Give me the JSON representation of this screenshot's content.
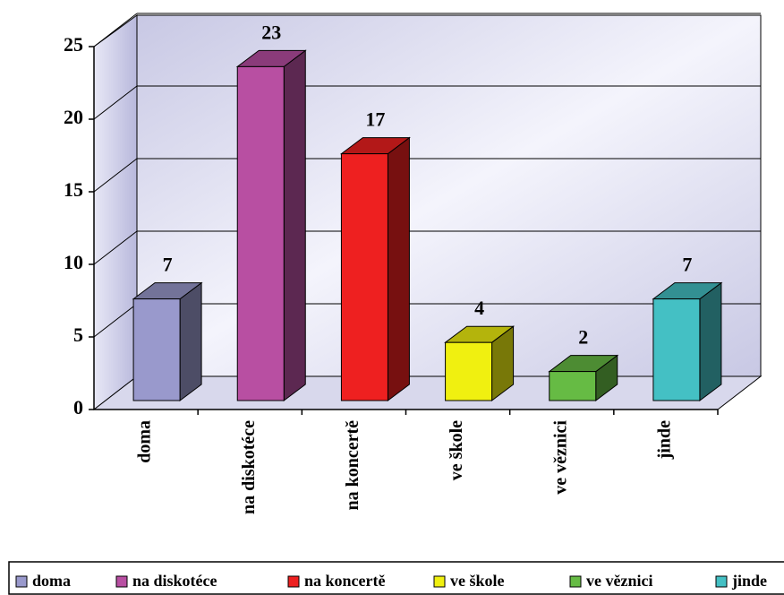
{
  "chart_data": {
    "type": "bar3d",
    "categories": [
      "doma",
      "na diskotéce",
      "na koncertě",
      "ve škole",
      "ve věznici",
      "jinde"
    ],
    "values": [
      7,
      23,
      17,
      4,
      2,
      7
    ],
    "colors": [
      "#9999cc",
      "#b84fa2",
      "#ee2020",
      "#f0f010",
      "#66bb44",
      "#44c0c4"
    ],
    "ylim": [
      0,
      25
    ],
    "yticks": [
      0,
      5,
      10,
      15,
      20,
      25
    ],
    "grid": true,
    "legend": "bottom"
  }
}
